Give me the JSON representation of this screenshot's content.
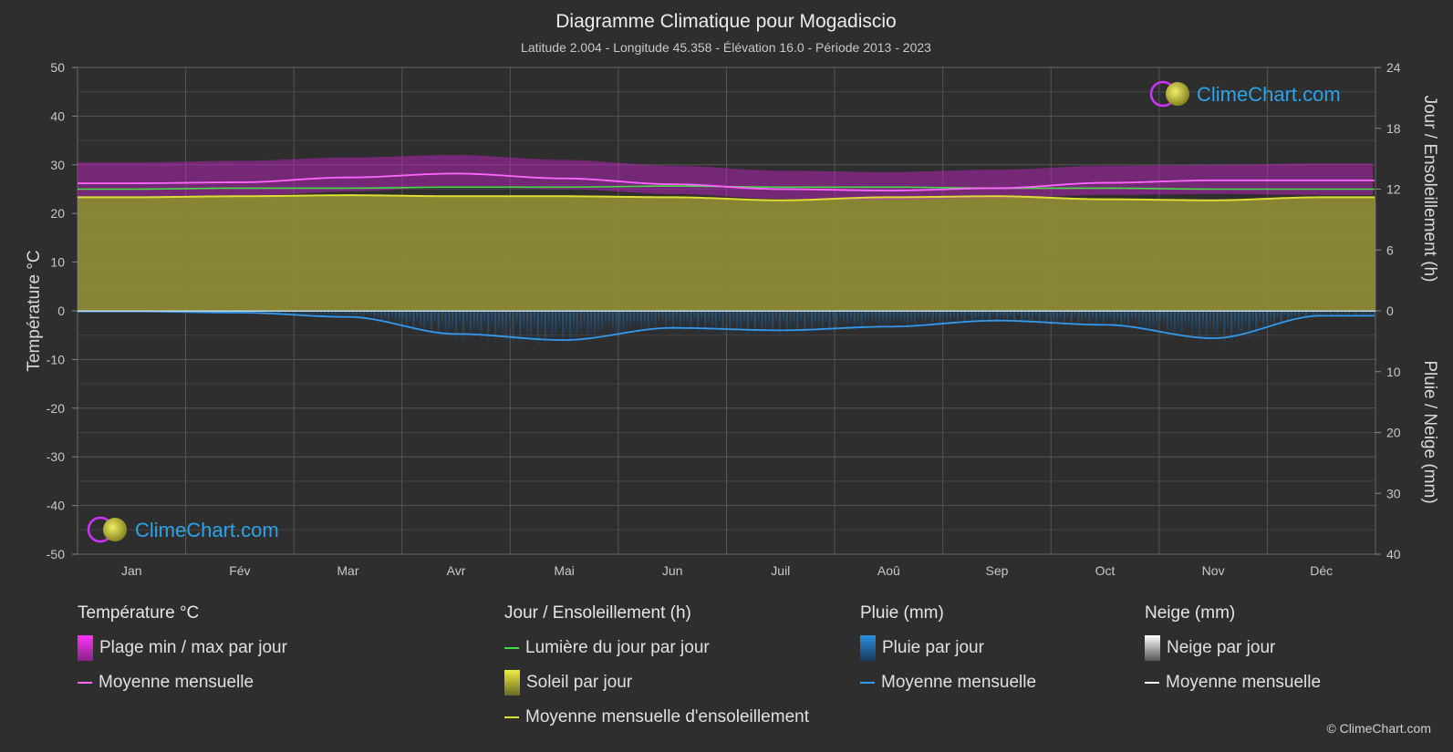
{
  "chart_data": {
    "type": "area",
    "title": "Diagramme Climatique pour Mogadiscio",
    "subtitle": "Latitude 2.004 - Longitude 45.358 - Élévation 16.0 - Période 2013 - 2023",
    "months": [
      "Jan",
      "Fév",
      "Mar",
      "Avr",
      "Mai",
      "Jun",
      "Juil",
      "Aoû",
      "Sep",
      "Oct",
      "Nov",
      "Déc"
    ],
    "left_axis": {
      "label": "Température °C",
      "ticks": [
        "50",
        "40",
        "30",
        "20",
        "10",
        "0",
        "-10",
        "-20",
        "-30",
        "-40",
        "-50"
      ],
      "range": [
        -50,
        50
      ]
    },
    "right_axis_top": {
      "label": "Jour / Ensoleillement (h)",
      "ticks": [
        "24",
        "18",
        "12",
        "6",
        "0"
      ],
      "range": [
        0,
        24
      ]
    },
    "right_axis_bottom": {
      "label": "Pluie / Neige (mm)",
      "ticks": [
        "0",
        "10",
        "20",
        "30",
        "40"
      ],
      "range": [
        0,
        40
      ]
    },
    "series": [
      {
        "key": "temp_max",
        "unit": "°C",
        "values": [
          30.5,
          30.8,
          31.5,
          32.0,
          31.0,
          29.8,
          28.8,
          28.5,
          29.0,
          29.8,
          30.0,
          30.3
        ]
      },
      {
        "key": "temp_min",
        "unit": "°C",
        "values": [
          23.5,
          23.5,
          24.5,
          25.5,
          25.0,
          24.0,
          23.0,
          22.8,
          23.2,
          23.8,
          24.0,
          23.8
        ]
      },
      {
        "name": "Moyenne mensuelle",
        "key": "temp_mean",
        "unit": "°C",
        "color": "#ff66ff",
        "values": [
          26.2,
          26.4,
          27.4,
          28.2,
          27.2,
          26.0,
          25.0,
          24.7,
          25.2,
          26.3,
          26.8,
          26.8
        ]
      },
      {
        "name": "Lumière du jour par jour",
        "key": "daylight",
        "unit": "h",
        "color": "#44dd44",
        "values": [
          12.0,
          12.1,
          12.1,
          12.2,
          12.2,
          12.3,
          12.2,
          12.2,
          12.1,
          12.1,
          12.0,
          12.0
        ]
      },
      {
        "name": "Moyenne mensuelle d'ensoleillement",
        "key": "sunshine",
        "unit": "h",
        "color": "#dddd33",
        "values": [
          11.2,
          11.3,
          11.4,
          11.3,
          11.3,
          11.2,
          10.9,
          11.2,
          11.3,
          11.0,
          10.9,
          11.2
        ]
      },
      {
        "name": "Moyenne mensuelle",
        "key": "rain_mean",
        "unit": "mm",
        "color": "#3399ee",
        "values": [
          0.1,
          0.3,
          1.0,
          3.8,
          4.8,
          2.8,
          3.2,
          2.6,
          1.6,
          2.3,
          4.5,
          0.8
        ]
      }
    ]
  },
  "brand": {
    "text": "ClimeChart.com"
  },
  "legend": {
    "temperature": {
      "header": "Température °C",
      "range_label": "Plage min / max par jour",
      "mean_label": "Moyenne mensuelle"
    },
    "sun": {
      "header": "Jour / Ensoleillement (h)",
      "daylight_label": "Lumière du jour par jour",
      "sunshine_label": "Soleil par jour",
      "mean_label": "Moyenne mensuelle d'ensoleillement"
    },
    "rain": {
      "header": "Pluie (mm)",
      "daily_label": "Pluie par jour",
      "mean_label": "Moyenne mensuelle"
    },
    "snow": {
      "header": "Neige (mm)",
      "daily_label": "Neige par jour",
      "mean_label": "Moyenne mensuelle"
    }
  },
  "copyright": "© ClimeChart.com",
  "colors": {
    "background": "#2e2e2e",
    "temp_range": "#cc22cc",
    "temp_mean": "#ff66ff",
    "daylight": "#44dd44",
    "sunshine_fill": "#8c8a35",
    "sunshine_mean": "#dddd33",
    "rain_bar": "#1e5e8c",
    "rain_mean": "#3399ee",
    "snow_mean": "#ffffff",
    "brand": "#2aa3e8"
  }
}
